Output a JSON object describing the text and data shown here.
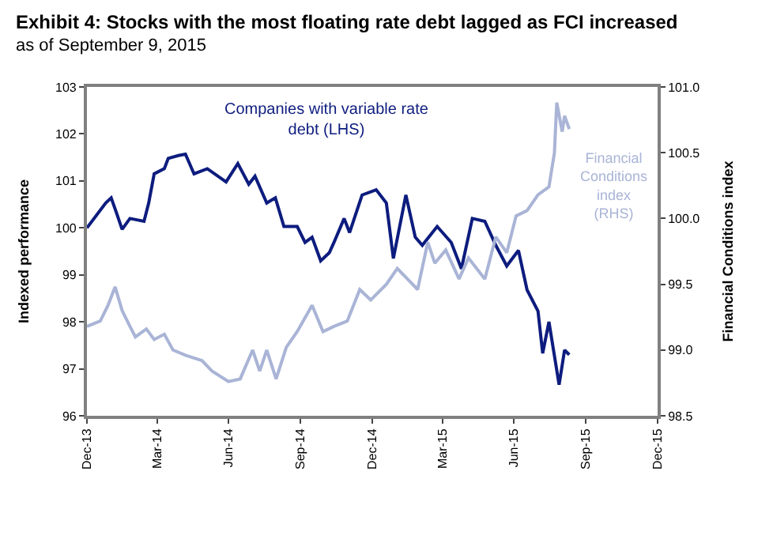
{
  "chart_data": {
    "type": "line",
    "title": "Exhibit 4: Stocks with the most floating rate debt lagged as FCI increased",
    "subtitle": "as of September 9, 2015",
    "ylabel": "Indexed performance",
    "y2label": "Financial Conditions index",
    "x": [
      "2013-12-31",
      "2014-01-24",
      "2014-01-31",
      "2014-02-07",
      "2014-02-14",
      "2014-02-24",
      "2014-03-14",
      "2014-03-20",
      "2014-03-27",
      "2014-04-09",
      "2014-04-14",
      "2014-04-27",
      "2014-05-06",
      "2014-05-17",
      "2014-06-03",
      "2014-06-27",
      "2014-07-12",
      "2014-07-26",
      "2014-08-03",
      "2014-08-18",
      "2014-08-29",
      "2014-09-09",
      "2014-09-26",
      "2014-10-06",
      "2014-10-15",
      "2014-10-26",
      "2014-11-06",
      "2014-11-12",
      "2014-11-25",
      "2014-12-02",
      "2014-12-18",
      "2015-01-05",
      "2015-01-18",
      "2015-01-27",
      "2015-02-12",
      "2015-02-24",
      "2015-03-05",
      "2015-03-24",
      "2015-04-11",
      "2015-04-24",
      "2015-05-08",
      "2015-05-24",
      "2015-06-07",
      "2015-06-21",
      "2015-07-06",
      "2015-07-17",
      "2015-07-31",
      "2015-08-06",
      "2015-08-14",
      "2015-08-27",
      "2015-09-03",
      "2015-09-09"
    ],
    "series": [
      {
        "name": "Companies with variable rate\ndebt (LHS)",
        "color": "#0d1c7e",
        "values": [
          100.0,
          100.53,
          100.64,
          100.31,
          99.97,
          100.2,
          100.14,
          100.53,
          101.15,
          101.26,
          101.48,
          101.54,
          101.57,
          101.15,
          101.26,
          100.98,
          101.37,
          100.93,
          101.1,
          100.53,
          100.64,
          100.03,
          100.03,
          99.69,
          99.8,
          99.3,
          99.47,
          99.69,
          100.2,
          99.9,
          100.7,
          100.81,
          100.53,
          99.35,
          100.7,
          99.8,
          99.63,
          100.03,
          99.69,
          99.13,
          100.2,
          100.14,
          99.63,
          99.19,
          99.52,
          98.68,
          98.23,
          97.33,
          98.0,
          96.66,
          97.4,
          97.3
        ]
      },
      {
        "name": "Financial\nConditions\nindex\n(RHS)",
        "color": "#a9b4d6",
        "axis": "y2",
        "x": [
          "2013-12-31",
          "2014-01-17",
          "2014-01-27",
          "2014-02-05",
          "2014-02-14",
          "2014-02-24",
          "2014-03-03",
          "2014-03-17",
          "2014-03-27",
          "2014-04-09",
          "2014-04-20",
          "2014-05-06",
          "2014-05-27",
          "2014-06-09",
          "2014-06-30",
          "2014-07-15",
          "2014-07-31",
          "2014-08-09",
          "2014-08-18",
          "2014-08-30",
          "2014-09-12",
          "2014-09-26",
          "2014-10-15",
          "2014-10-29",
          "2014-11-12",
          "2014-11-29",
          "2014-12-15",
          "2014-12-29",
          "2015-01-18",
          "2015-02-01",
          "2015-02-14",
          "2015-02-27",
          "2015-03-12",
          "2015-03-21",
          "2015-04-04",
          "2015-04-21",
          "2015-05-03",
          "2015-05-24",
          "2015-06-07",
          "2015-06-21",
          "2015-07-03",
          "2015-07-17",
          "2015-07-31",
          "2015-08-14",
          "2015-08-21",
          "2015-08-24",
          "2015-08-31",
          "2015-09-03",
          "2015-09-09"
        ],
        "values": [
          99.18,
          99.22,
          99.34,
          99.48,
          99.3,
          99.18,
          99.1,
          99.16,
          99.08,
          99.12,
          99.0,
          98.96,
          98.92,
          98.84,
          98.76,
          98.78,
          99.0,
          98.84,
          99.0,
          98.78,
          99.02,
          99.14,
          99.34,
          99.14,
          99.18,
          99.22,
          99.46,
          99.38,
          99.5,
          99.62,
          99.54,
          99.46,
          99.82,
          99.66,
          99.76,
          99.54,
          99.7,
          99.54,
          99.86,
          99.74,
          100.02,
          100.06,
          100.18,
          100.24,
          100.5,
          100.88,
          100.66,
          100.78,
          100.68
        ]
      }
    ],
    "xlim": [
      "2013-12-31",
      "2015-12-31"
    ],
    "xticks": [
      {
        "value": "2013-12-31",
        "label": "Dec-13"
      },
      {
        "value": "2014-03-31",
        "label": "Mar-14"
      },
      {
        "value": "2014-06-30",
        "label": "Jun-14"
      },
      {
        "value": "2014-09-30",
        "label": "Sep-14"
      },
      {
        "value": "2014-12-31",
        "label": "Dec-14"
      },
      {
        "value": "2015-03-31",
        "label": "Mar-15"
      },
      {
        "value": "2015-06-30",
        "label": "Jun-15"
      },
      {
        "value": "2015-09-30",
        "label": "Sep-15"
      },
      {
        "value": "2015-12-31",
        "label": "Dec-15"
      }
    ],
    "ylim": [
      96,
      103
    ],
    "yticks": [
      96,
      97,
      98,
      99,
      100,
      101,
      102,
      103
    ],
    "y2lim": [
      98.5,
      101.0
    ],
    "y2ticks": [
      98.5,
      {
        "value": 99,
        "label": "99.0"
      },
      99.5,
      {
        "value": 100,
        "label": "100.0"
      },
      100.5,
      {
        "value": 101,
        "label": "101.0"
      }
    ],
    "legend": false,
    "marker": "none",
    "line_style": "solid"
  }
}
